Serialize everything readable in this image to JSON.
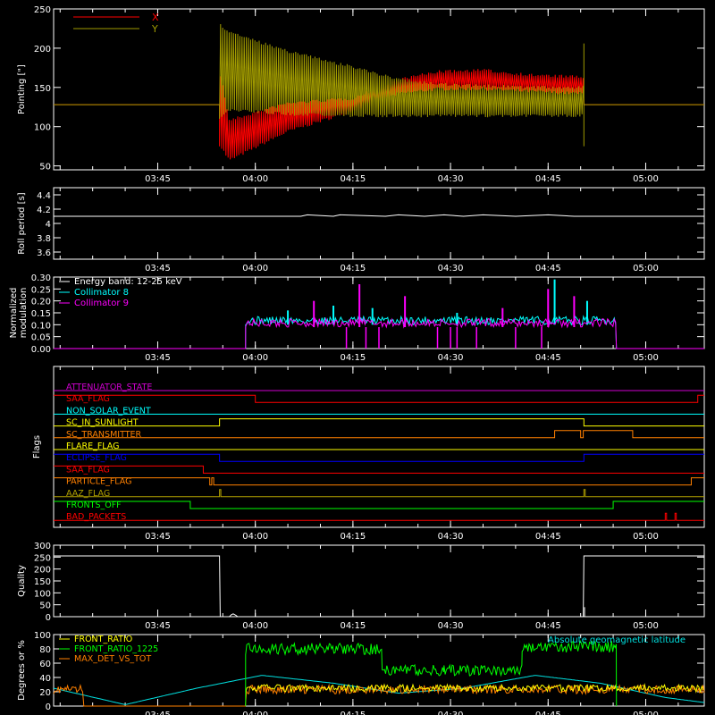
{
  "time_ticks": [
    "03:45",
    "04:00",
    "04:15",
    "04:30",
    "04:45",
    "05:00"
  ],
  "time_tick_values": [
    225,
    240,
    255,
    270,
    285,
    300
  ],
  "time_range": [
    209,
    309
  ],
  "chart_data": [
    {
      "id": "pointing",
      "type": "line",
      "ylabel": "Pointing [\"]",
      "ylim": [
        45,
        250
      ],
      "yticks": [
        50,
        100,
        150,
        200,
        250
      ],
      "legend_placement": "top-left",
      "series": [
        {
          "name": "X",
          "color": "#ff0000",
          "baseline": 128,
          "active": [
            234.5,
            290.5
          ],
          "envelope_t": [
            234.5,
            236,
            245,
            255,
            262,
            268,
            275,
            282,
            290.5
          ],
          "envelope_lo": [
            75,
            55,
            92,
            118,
            140,
            146,
            146,
            143,
            140
          ],
          "envelope_hi": [
            175,
            110,
            132,
            138,
            162,
            172,
            174,
            168,
            165
          ]
        },
        {
          "name": "Y",
          "color": "#a09a00",
          "baseline": 128,
          "active": [
            234.5,
            290.5
          ],
          "envelope_t": [
            234.5,
            236,
            245,
            255,
            262,
            268,
            275,
            282,
            290.5
          ],
          "envelope_lo": [
            110,
            120,
            114,
            112,
            112,
            112,
            112,
            112,
            112
          ],
          "envelope_hi": [
            232,
            222,
            198,
            178,
            162,
            156,
            154,
            152,
            152
          ]
        }
      ]
    },
    {
      "id": "roll-period",
      "type": "line",
      "ylabel": "Roll period [s]",
      "ylim": [
        3.5,
        4.5
      ],
      "yticks": [
        3.6,
        3.8,
        4.0,
        4.2,
        4.4
      ],
      "series": [
        {
          "name": "roll period",
          "color": "#ffffff",
          "x": [
            209,
            247,
            248,
            252,
            253,
            260,
            262,
            266,
            269,
            272,
            275,
            280,
            285,
            289,
            309
          ],
          "values": [
            4.1,
            4.1,
            4.12,
            4.1,
            4.12,
            4.1,
            4.12,
            4.1,
            4.12,
            4.1,
            4.12,
            4.1,
            4.12,
            4.1,
            4.1
          ]
        }
      ]
    },
    {
      "id": "modulation",
      "type": "bar",
      "ylabel": "Normalized modulation",
      "ylim": [
        0,
        0.3
      ],
      "yticks": [
        "0.00",
        "0.05",
        "0.10",
        "0.15",
        "0.20",
        "0.25",
        "0.30"
      ],
      "legend_placement": "top-left",
      "legend": [
        "Energy band: 12-25 keV",
        "Collimator 8",
        "Collimator 9"
      ],
      "series": [
        {
          "name": "Collimator 8",
          "color": "#00ffff",
          "active": [
            238.5,
            295.5
          ],
          "baseline": 0.1,
          "peaks": [
            [
              245,
              0.16
            ],
            [
              258,
              0.17
            ],
            [
              271,
              0.15
            ],
            [
              286,
              0.29
            ],
            [
              291,
              0.2
            ],
            [
              252,
              0.18
            ]
          ]
        },
        {
          "name": "Collimator 9",
          "color": "#ff00ff",
          "active": [
            238.5,
            295.5
          ],
          "baseline": 0.09,
          "peaks": [
            [
              249,
              0.2
            ],
            [
              256,
              0.27
            ],
            [
              263,
              0.22
            ],
            [
              278,
              0.17
            ],
            [
              285,
              0.25
            ],
            [
              289,
              0.22
            ]
          ],
          "dips": [
            254,
            257,
            259,
            268,
            270,
            271,
            274,
            280,
            284
          ]
        }
      ]
    },
    {
      "id": "flags",
      "type": "line",
      "ylabel": "Flags",
      "flags": [
        {
          "name": "ATTENUATOR_STATE",
          "color": "#d000d0",
          "steps": [
            [
              209,
              0
            ]
          ]
        },
        {
          "name": "SAA_FLAG",
          "color": "#ff0000",
          "steps": [
            [
              209,
              1
            ],
            [
              240,
              0
            ],
            [
              308,
              1
            ]
          ]
        },
        {
          "name": "NON_SOLAR_EVENT",
          "color": "#00ffff",
          "steps": [
            [
              209,
              0
            ]
          ]
        },
        {
          "name": "SC_IN_SUNLIGHT",
          "color": "#ffff00",
          "steps": [
            [
              209,
              0
            ],
            [
              234.5,
              1
            ],
            [
              290.5,
              0
            ]
          ]
        },
        {
          "name": "SC_TRANSMITTER",
          "color": "#ff8000",
          "steps": [
            [
              209,
              0
            ],
            [
              286,
              1
            ],
            [
              290,
              0
            ],
            [
              290.4,
              1
            ],
            [
              298,
              0
            ]
          ]
        },
        {
          "name": "FLARE_FLAG",
          "color": "#ffff00",
          "steps": [
            [
              209,
              0
            ]
          ]
        },
        {
          "name": "ECLIPSE_FLAG",
          "color": "#0000ff",
          "steps": [
            [
              209,
              1
            ],
            [
              234.5,
              0
            ],
            [
              290.5,
              1
            ]
          ]
        },
        {
          "name": "SAA_FLAG",
          "color": "#ff0000",
          "steps": [
            [
              209,
              1
            ],
            [
              232,
              0
            ]
          ]
        },
        {
          "name": "PARTICLE_FLAG",
          "color": "#ff8000",
          "steps": [
            [
              209,
              1
            ],
            [
              233,
              0
            ],
            [
              233.3,
              1
            ],
            [
              233.6,
              0
            ],
            [
              307,
              1
            ]
          ]
        },
        {
          "name": "AAZ_FLAG",
          "color": "#b0a000",
          "steps": [
            [
              209,
              0
            ],
            [
              234.5,
              1
            ],
            [
              234.7,
              0
            ],
            [
              290.5,
              1
            ],
            [
              290.7,
              0
            ]
          ]
        },
        {
          "name": "FRONTS_OFF",
          "color": "#00ff00",
          "steps": [
            [
              209,
              1
            ],
            [
              230,
              0
            ],
            [
              295,
              1
            ]
          ]
        },
        {
          "name": "BAD_PACKETS",
          "color": "#ff0000",
          "steps": [
            [
              209,
              0
            ],
            [
              303,
              1
            ],
            [
              303.2,
              0
            ],
            [
              304.5,
              1
            ],
            [
              304.7,
              0
            ]
          ]
        }
      ]
    },
    {
      "id": "quality",
      "type": "line",
      "ylabel": "Quality",
      "ylim": [
        0,
        300
      ],
      "yticks": [
        0,
        50,
        100,
        150,
        200,
        250,
        300
      ],
      "series": [
        {
          "name": "quality",
          "color": "#ffffff",
          "x": [
            209,
            234.5,
            234.6,
            236,
            236.3,
            236.6,
            237,
            237.3,
            290.4,
            290.5,
            309
          ],
          "values": [
            255,
            255,
            0,
            0,
            8,
            12,
            6,
            0,
            0,
            255,
            255
          ]
        }
      ]
    },
    {
      "id": "ratios",
      "type": "line",
      "ylabel": "Degrees or %",
      "ylim": [
        0,
        100
      ],
      "yticks": [
        0,
        20,
        40,
        60,
        80,
        100
      ],
      "legend_placement": "top-left",
      "series": [
        {
          "name": "FRONT_RATIO",
          "color": "#ffff00",
          "active": [
            238.5,
            309
          ],
          "level": 25,
          "noise": 5
        },
        {
          "name": "FRONT_RATIO_1225",
          "color": "#00ff00",
          "active": [
            238.5,
            295.5
          ],
          "segments": [
            [
              238.5,
              259.5,
              80
            ],
            [
              259.5,
              269,
              50
            ],
            [
              269,
              281,
              50
            ],
            [
              281,
              295.5,
              83
            ]
          ],
          "noise": 8
        },
        {
          "name": "MAX_DET_VS_TOT",
          "color": "#ff8000",
          "active": [
            209,
            309
          ],
          "level": 22,
          "noise": 6,
          "gap": [
            213.5,
            238.5
          ]
        },
        {
          "name": "Absolute geomagnetic latitude",
          "color": "#00e0e0",
          "x": [
            209,
            220,
            231,
            241,
            252,
            262,
            272,
            283,
            293,
            303,
            309
          ],
          "values": [
            25,
            2,
            25,
            43,
            32,
            18,
            25,
            43,
            32,
            12,
            5
          ]
        }
      ]
    }
  ]
}
